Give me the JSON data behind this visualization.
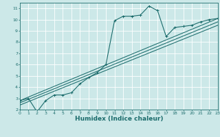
{
  "xlabel": "Humidex (Indice chaleur)",
  "bg_color": "#cce8e8",
  "line_color": "#1a6b6b",
  "grid_color": "#ffffff",
  "xmin": 0,
  "xmax": 23,
  "ymin": 2,
  "ymax": 11.5,
  "xticks": [
    0,
    1,
    2,
    3,
    4,
    5,
    6,
    7,
    8,
    9,
    10,
    11,
    12,
    13,
    14,
    15,
    16,
    17,
    18,
    19,
    20,
    21,
    22,
    23
  ],
  "yticks": [
    2,
    3,
    4,
    5,
    6,
    7,
    8,
    9,
    10,
    11
  ],
  "curve1_x": [
    0,
    1,
    2,
    3,
    4,
    5,
    6,
    7,
    8,
    9,
    10,
    11,
    12,
    13,
    14,
    15,
    16,
    17,
    18,
    19,
    20,
    21,
    22,
    23
  ],
  "curve1_y": [
    2.8,
    3.0,
    1.8,
    2.8,
    3.3,
    3.3,
    3.5,
    4.3,
    4.85,
    5.3,
    6.0,
    9.9,
    10.3,
    10.3,
    10.4,
    11.2,
    10.8,
    8.5,
    9.3,
    9.4,
    9.5,
    9.8,
    10.0,
    10.1
  ],
  "curve2_x": [
    0,
    23
  ],
  "curve2_y": [
    2.8,
    10.1
  ],
  "curve3_x": [
    0,
    23
  ],
  "curve3_y": [
    2.6,
    9.8
  ],
  "curve4_x": [
    0,
    23
  ],
  "curve4_y": [
    2.4,
    9.5
  ]
}
